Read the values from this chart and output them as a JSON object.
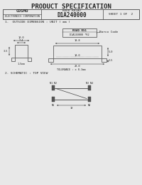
{
  "title": "PRODUCT SPECIFICATION",
  "company": "COSMO",
  "company_sub": "ELECTRONICS CORPORATION",
  "relay_type": "REED RELAY",
  "part_number": "D1A240000",
  "sheet": "SHEET 1 OF  2",
  "section1": "1.  OUTSIDE DIMENSION : UNIT ( mm )",
  "section2": "2. SCHEMATIC : TOP VIEW",
  "barcode_label": "Barco Code",
  "tolerance": "TOLERANCE : ± 0.3mm",
  "bg_color": "#e8e8e8",
  "line_color": "#444444",
  "text_color": "#222222"
}
